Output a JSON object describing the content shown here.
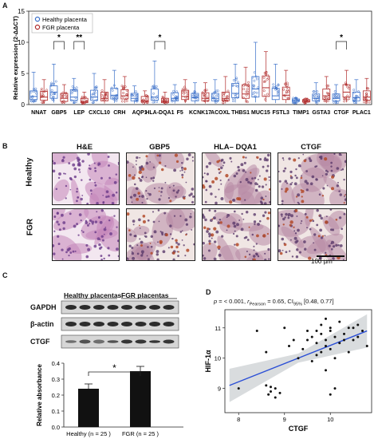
{
  "panels": {
    "a": {
      "letter": "A"
    },
    "b": {
      "letter": "B"
    },
    "c": {
      "letter": "C"
    },
    "d": {
      "letter": "D"
    }
  },
  "panel_a": {
    "legend": [
      "Healthy placenta",
      "FGR placenta"
    ],
    "ylabel": "Relative expression (2-ΔΔCT)",
    "yticks": [
      "0",
      "5",
      "10",
      "15"
    ],
    "genes": [
      "NNAT",
      "GBP5",
      "LEP",
      "CXCL10",
      "CRH",
      "AQP1",
      "HLA-DQA1",
      "F5",
      "KCNK17",
      "ACOXL",
      "THBS1",
      "MUC15",
      "FSTL3",
      "TIMP1",
      "GSTA3",
      "CTGF",
      "PLAC1"
    ],
    "significance": [
      {
        "gene": "GBP5",
        "label": "*"
      },
      {
        "gene": "LEP",
        "label": "**"
      },
      {
        "gene": "HLA-DQA1",
        "label": "*"
      },
      {
        "gene": "CTGF",
        "label": "*"
      }
    ],
    "colors": {
      "healthy": "#3a6fc9",
      "fgr": "#b02a2a"
    }
  },
  "panel_b": {
    "columns": [
      "H&E",
      "GBP5",
      "HLA– DQA1",
      "CTGF"
    ],
    "rows": [
      "Healthy",
      "FGR"
    ],
    "scalebar": "100 µm"
  },
  "panel_c": {
    "group_labels": [
      "Healthy placentas",
      "FGR placentas"
    ],
    "blot_labels": [
      "GAPDH",
      "β-actin",
      "CTGF"
    ],
    "ylabel": "Relative absorbance",
    "yticks": [
      "0.0",
      "0.1",
      "0.2",
      "0.3",
      "0.4"
    ],
    "significance": "*"
  },
  "panel_d": {
    "stat_text": "p = < 0.001, r Pearson = 0.65, CI 95% [0.48, 0.77]",
    "stat_p": "p",
    "stat_rest1": " = < 0.001, ",
    "stat_r": "r",
    "stat_rsub": "Pearson",
    "stat_rest2": " = 0.65, CI",
    "stat_cisub": "95%",
    "stat_rest3": " [0.48, 0.77]",
    "xlabel": "CTGF",
    "ylabel": "HIF-1α",
    "xticks": [
      "8",
      "9",
      "10"
    ],
    "yticks": [
      "9",
      "10",
      "11"
    ]
  },
  "chart_data": [
    {
      "type": "box",
      "title": "",
      "xlabel": "",
      "ylabel": "Relative expression (2-ΔΔCT)",
      "ylim": [
        0,
        15
      ],
      "categories": [
        "NNAT",
        "GBP5",
        "LEP",
        "CXCL10",
        "CRH",
        "AQP1",
        "HLA-DQA1",
        "F5",
        "KCNK17",
        "ACOXL",
        "THBS1",
        "MUC15",
        "FSTL3",
        "TIMP1",
        "GSTA3",
        "CTGF",
        "PLAC1"
      ],
      "series": [
        {
          "name": "Healthy placenta",
          "median": [
            1.3,
            2.0,
            1.2,
            1.2,
            1.5,
            1.0,
            1.2,
            1.0,
            1.1,
            1.0,
            1.8,
            2.5,
            1.4,
            0.7,
            1.0,
            1.0,
            1.1
          ],
          "q1": [
            0.8,
            1.0,
            0.7,
            0.7,
            0.9,
            0.6,
            0.7,
            0.6,
            0.6,
            0.6,
            1.1,
            1.2,
            0.8,
            0.5,
            0.6,
            0.6,
            0.6
          ],
          "q3": [
            2.2,
            3.0,
            2.4,
            2.3,
            2.6,
            1.8,
            2.5,
            1.9,
            1.8,
            1.8,
            3.4,
            4.5,
            2.6,
            0.9,
            1.7,
            1.7,
            2.0
          ],
          "max": [
            5.2,
            6.5,
            4.2,
            5.0,
            5.5,
            3.0,
            7.0,
            3.2,
            3.5,
            4.0,
            6.5,
            10.0,
            6.5,
            1.1,
            3.5,
            3.2,
            4.0
          ]
        },
        {
          "name": "FGR placenta",
          "median": [
            1.2,
            1.0,
            0.5,
            1.0,
            1.4,
            0.6,
            0.5,
            1.3,
            1.0,
            1.0,
            1.7,
            2.7,
            1.5,
            0.6,
            1.4,
            2.0,
            1.2
          ],
          "q1": [
            0.7,
            0.5,
            0.3,
            0.6,
            0.9,
            0.4,
            0.3,
            0.8,
            0.6,
            0.6,
            1.0,
            1.3,
            0.8,
            0.4,
            0.8,
            1.2,
            0.7
          ],
          "q3": [
            2.1,
            1.8,
            1.0,
            2.0,
            2.4,
            1.3,
            1.0,
            2.3,
            1.9,
            2.0,
            3.2,
            4.6,
            2.8,
            0.8,
            2.5,
            3.2,
            2.2
          ],
          "max": [
            4.0,
            3.2,
            2.0,
            4.0,
            4.5,
            2.2,
            2.0,
            4.0,
            3.5,
            4.5,
            6.0,
            8.5,
            5.5,
            1.0,
            4.5,
            5.5,
            4.2
          ]
        }
      ]
    },
    {
      "type": "bar",
      "title": "",
      "xlabel": "",
      "ylabel": "Relative absorbance",
      "ylim": [
        0,
        0.4
      ],
      "categories": [
        "Healthy (n = 25 )",
        "FGR (n = 25 )"
      ],
      "values": [
        0.24,
        0.35
      ],
      "errors": [
        0.03,
        0.03
      ]
    },
    {
      "type": "scatter",
      "title": "",
      "xlabel": "CTGF",
      "ylabel": "HIF-1α",
      "xlim": [
        7.7,
        10.9
      ],
      "ylim": [
        8.2,
        11.6
      ],
      "fit_line": {
        "x": [
          7.8,
          10.8
        ],
        "y": [
          9.1,
          10.9
        ]
      },
      "points": [
        [
          8.0,
          9.0
        ],
        [
          8.6,
          9.1
        ],
        [
          8.7,
          8.9
        ],
        [
          8.8,
          9.0
        ],
        [
          8.65,
          8.8
        ],
        [
          8.9,
          8.85
        ],
        [
          8.7,
          9.05
        ],
        [
          8.8,
          8.7
        ],
        [
          9.3,
          10.0
        ],
        [
          9.5,
          10.6
        ],
        [
          9.6,
          10.7
        ],
        [
          9.7,
          10.5
        ],
        [
          9.8,
          10.8
        ],
        [
          9.9,
          10.6
        ],
        [
          10.0,
          10.9
        ],
        [
          10.1,
          10.7
        ],
        [
          9.4,
          10.3
        ],
        [
          9.7,
          10.1
        ],
        [
          9.9,
          10.4
        ],
        [
          10.2,
          10.5
        ],
        [
          10.3,
          10.8
        ],
        [
          10.4,
          11.0
        ],
        [
          10.5,
          10.6
        ],
        [
          10.6,
          10.7
        ],
        [
          9.2,
          10.6
        ],
        [
          9.5,
          10.9
        ],
        [
          9.8,
          11.1
        ],
        [
          10.0,
          10.3
        ],
        [
          10.1,
          10.0
        ],
        [
          9.6,
          9.9
        ],
        [
          10.4,
          10.2
        ],
        [
          10.7,
          10.9
        ],
        [
          8.4,
          10.9
        ],
        [
          8.6,
          10.2
        ],
        [
          9.0,
          11.0
        ],
        [
          9.1,
          10.4
        ],
        [
          9.9,
          9.6
        ],
        [
          10.0,
          8.8
        ],
        [
          10.1,
          9.0
        ],
        [
          10.8,
          10.4
        ],
        [
          9.9,
          11.3
        ],
        [
          10.2,
          11.2
        ],
        [
          10.3,
          10.6
        ],
        [
          9.7,
          10.9
        ],
        [
          10.5,
          11.0
        ],
        [
          9.8,
          10.2
        ],
        [
          10.0,
          11.0
        ],
        [
          10.6,
          11.1
        ]
      ]
    }
  ]
}
